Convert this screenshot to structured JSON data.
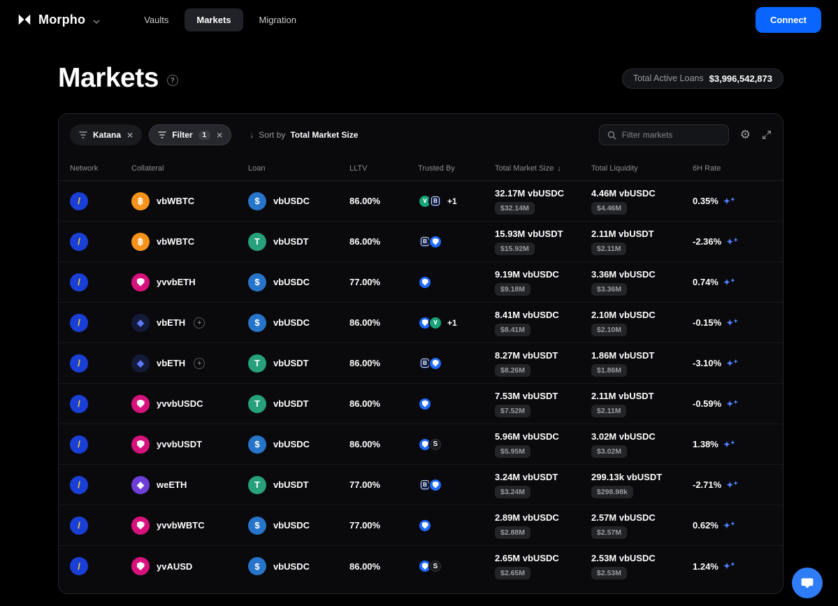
{
  "theme": {
    "accent": "#0866ff",
    "background": "#000000",
    "card": "#0a0a0c",
    "sparkle": "#4f82ff"
  },
  "nav": {
    "brand": "Morpho",
    "items": [
      {
        "label": "Vaults",
        "active": false
      },
      {
        "label": "Markets",
        "active": true
      },
      {
        "label": "Migration",
        "active": false
      }
    ],
    "connect_label": "Connect"
  },
  "header": {
    "title": "Markets",
    "total_active_loans_label": "Total Active Loans",
    "total_active_loans_value": "$3,996,542,873"
  },
  "toolbar": {
    "chips": [
      {
        "label": "Katana"
      },
      {
        "label": "Filter",
        "count": "1"
      }
    ],
    "sort_prefix": "Sort by",
    "sort_value": "Total Market Size",
    "search_placeholder": "Filter markets"
  },
  "table": {
    "columns": [
      "Network",
      "Collateral",
      "Loan",
      "LLTV",
      "Trusted By",
      "Total Market Size",
      "Total Liquidity",
      "6H Rate"
    ],
    "rows": [
      {
        "network": "katana",
        "collateral": {
          "label": "vbWBTC",
          "icon": "wbtc",
          "plus": false
        },
        "loan": {
          "label": "vbUSDC",
          "icon": "usdc"
        },
        "lltv": "86.00%",
        "trusted": [
          "green",
          "b"
        ],
        "trusted_extra": "+1",
        "size": {
          "amount": "32.17M vbUSDC",
          "usd": "$32.14M"
        },
        "liquidity": {
          "amount": "4.46M vbUSDC",
          "usd": "$4.46M"
        },
        "rate": "0.35%"
      },
      {
        "network": "katana",
        "collateral": {
          "label": "vbWBTC",
          "icon": "wbtc",
          "plus": false
        },
        "loan": {
          "label": "vbUSDT",
          "icon": "usdt"
        },
        "lltv": "86.00%",
        "trusted": [
          "b",
          "shield"
        ],
        "trusted_extra": "",
        "size": {
          "amount": "15.93M vbUSDT",
          "usd": "$15.92M"
        },
        "liquidity": {
          "amount": "2.11M vbUSDT",
          "usd": "$2.11M"
        },
        "rate": "-2.36%"
      },
      {
        "network": "katana",
        "collateral": {
          "label": "yvvbETH",
          "icon": "yearn",
          "plus": false
        },
        "loan": {
          "label": "vbUSDC",
          "icon": "usdc"
        },
        "lltv": "77.00%",
        "trusted": [
          "shield"
        ],
        "trusted_extra": "",
        "size": {
          "amount": "9.19M vbUSDC",
          "usd": "$9.18M"
        },
        "liquidity": {
          "amount": "3.36M vbUSDC",
          "usd": "$3.36M"
        },
        "rate": "0.74%"
      },
      {
        "network": "katana",
        "collateral": {
          "label": "vbETH",
          "icon": "eth",
          "plus": true
        },
        "loan": {
          "label": "vbUSDC",
          "icon": "usdc"
        },
        "lltv": "86.00%",
        "trusted": [
          "shield",
          "green"
        ],
        "trusted_extra": "+1",
        "size": {
          "amount": "8.41M vbUSDC",
          "usd": "$8.41M"
        },
        "liquidity": {
          "amount": "2.10M vbUSDC",
          "usd": "$2.10M"
        },
        "rate": "-0.15%"
      },
      {
        "network": "katana",
        "collateral": {
          "label": "vbETH",
          "icon": "eth",
          "plus": true
        },
        "loan": {
          "label": "vbUSDT",
          "icon": "usdt"
        },
        "lltv": "86.00%",
        "trusted": [
          "b",
          "shield"
        ],
        "trusted_extra": "",
        "size": {
          "amount": "8.27M vbUSDT",
          "usd": "$8.26M"
        },
        "liquidity": {
          "amount": "1.86M vbUSDT",
          "usd": "$1.86M"
        },
        "rate": "-3.10%"
      },
      {
        "network": "katana",
        "collateral": {
          "label": "yvvbUSDC",
          "icon": "yearn",
          "plus": false
        },
        "loan": {
          "label": "vbUSDT",
          "icon": "usdt"
        },
        "lltv": "86.00%",
        "trusted": [
          "shield"
        ],
        "trusted_extra": "",
        "size": {
          "amount": "7.53M vbUSDT",
          "usd": "$7.52M"
        },
        "liquidity": {
          "amount": "2.11M vbUSDT",
          "usd": "$2.11M"
        },
        "rate": "-0.59%"
      },
      {
        "network": "katana",
        "collateral": {
          "label": "yvvbUSDT",
          "icon": "yearn",
          "plus": false
        },
        "loan": {
          "label": "vbUSDC",
          "icon": "usdc"
        },
        "lltv": "86.00%",
        "trusted": [
          "shield",
          "s"
        ],
        "trusted_extra": "",
        "size": {
          "amount": "5.96M vbUSDC",
          "usd": "$5.95M"
        },
        "liquidity": {
          "amount": "3.02M vbUSDC",
          "usd": "$3.02M"
        },
        "rate": "1.38%"
      },
      {
        "network": "katana",
        "collateral": {
          "label": "weETH",
          "icon": "weeth",
          "plus": false
        },
        "loan": {
          "label": "vbUSDT",
          "icon": "usdt"
        },
        "lltv": "77.00%",
        "trusted": [
          "b",
          "shield"
        ],
        "trusted_extra": "",
        "size": {
          "amount": "3.24M vbUSDT",
          "usd": "$3.24M"
        },
        "liquidity": {
          "amount": "299.13k vbUSDT",
          "usd": "$298.98k"
        },
        "rate": "-2.71%"
      },
      {
        "network": "katana",
        "collateral": {
          "label": "yvvbWBTC",
          "icon": "yearn",
          "plus": false
        },
        "loan": {
          "label": "vbUSDC",
          "icon": "usdc"
        },
        "lltv": "77.00%",
        "trusted": [
          "shield"
        ],
        "trusted_extra": "",
        "size": {
          "amount": "2.89M vbUSDC",
          "usd": "$2.88M"
        },
        "liquidity": {
          "amount": "2.57M vbUSDC",
          "usd": "$2.57M"
        },
        "rate": "0.62%"
      },
      {
        "network": "katana",
        "collateral": {
          "label": "yvAUSD",
          "icon": "yearn",
          "plus": false
        },
        "loan": {
          "label": "vbUSDC",
          "icon": "usdc"
        },
        "lltv": "86.00%",
        "trusted": [
          "shield",
          "s"
        ],
        "trusted_extra": "",
        "size": {
          "amount": "2.65M vbUSDC",
          "usd": "$2.65M"
        },
        "liquidity": {
          "amount": "2.53M vbUSDC",
          "usd": "$2.53M"
        },
        "rate": "1.24%"
      }
    ]
  },
  "icons": {
    "katana": {
      "bg": "#1a3fd6",
      "fg": "#ffd02f",
      "glyph": "/"
    },
    "wbtc": {
      "bg": "#f7931a",
      "fg": "#ffffff",
      "glyph": "฿"
    },
    "usdc": {
      "bg": "#2775ca",
      "fg": "#ffffff",
      "glyph": "$"
    },
    "usdt": {
      "bg": "#26a17b",
      "fg": "#ffffff",
      "glyph": "T"
    },
    "yearn": {
      "bg": "#d8127d",
      "fg": "#ffffff",
      "shape": "shield"
    },
    "eth": {
      "bg": "#141b38",
      "fg": "#5a7bff",
      "glyph": "◆"
    },
    "weeth": {
      "bg": "#6d3fd8",
      "fg": "#ffffff",
      "glyph": "◆"
    },
    "green": {
      "bg": "#17a478",
      "fg": "#ffffff",
      "glyph": "∨"
    },
    "b": {
      "bg": "#0f1d4a",
      "fg": "#ffffff",
      "glyph": "B",
      "boxed": true
    },
    "shield": {
      "bg": "#1f6bff",
      "fg": "#ffffff",
      "shape": "shield"
    },
    "s": {
      "bg": "#16181c",
      "fg": "#ffffff",
      "glyph": "S",
      "border": "#3a3b3f"
    }
  }
}
